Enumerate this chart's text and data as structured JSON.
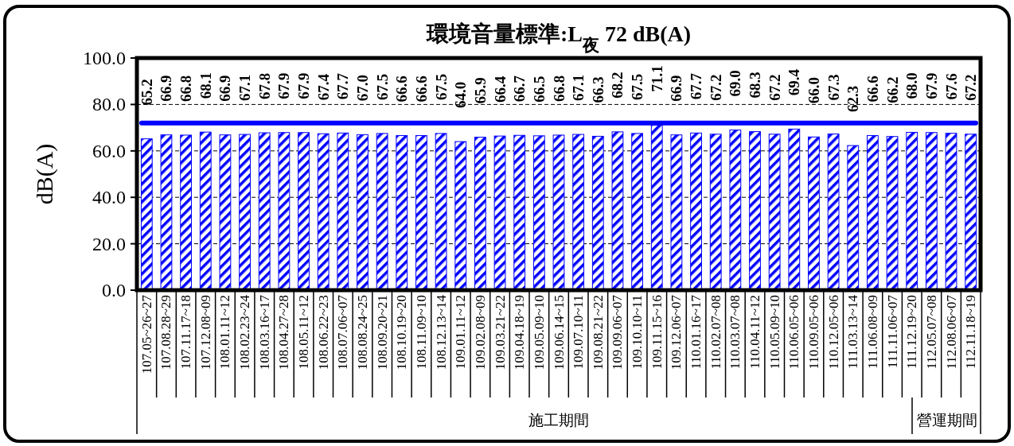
{
  "chart_data": {
    "type": "bar",
    "title": "環境音量標準:L$_{夜}$ 72 dB(A)",
    "ylabel": "dB(A)",
    "categories": [
      "107.05~26~27",
      "107.08.28~29",
      "107.11.17~18",
      "107.12.08~09",
      "108.01.11~12",
      "108.02.23~24",
      "108.03.16~17",
      "108.04.27~28",
      "108.05.11~12",
      "108.06.22~23",
      "108.07.06~07",
      "108.08.24~25",
      "108.09.20~21",
      "108.10.19~20",
      "108.11.09~10",
      "108.12.13~14",
      "109.01.11~12",
      "109.02.08~09",
      "109.03.21~22",
      "109.04.18~19",
      "109.05.09~10",
      "109.06.14~15",
      "109.07.10~11",
      "109.08.21~22",
      "109.09.06~07",
      "109.10.10~11",
      "109.11.15~16",
      "109.12.06~07",
      "110.01.16~17",
      "110.02.07~08",
      "110.03.07~08",
      "110.04.11~12",
      "110.05.09~10",
      "110.06.05~06",
      "110.09.05~06",
      "110.12.05~06",
      "111.03.13~14",
      "111.06.08~09",
      "111.11.06~07",
      "111.12.19~20",
      "112.05.07~08",
      "112.08.06~07",
      "112.11.18~19"
    ],
    "series": [
      {
        "color": "#0000ff",
        "values": [
          65.2,
          66.9,
          66.8,
          68.1,
          66.9,
          67.1,
          67.8,
          67.9,
          67.9,
          67.4,
          67.7,
          67.0,
          67.5,
          66.6,
          66.6,
          67.5,
          64.0,
          65.9,
          66.4,
          66.7,
          66.5,
          66.8,
          67.1,
          66.3,
          68.2,
          67.5,
          71.1,
          66.9,
          67.7,
          67.2,
          69.0,
          68.3,
          67.2,
          69.4,
          66.0,
          67.3,
          62.3,
          66.6,
          66.2,
          68.0,
          67.9,
          67.6,
          67.2
        ]
      }
    ],
    "ylim": [
      0,
      100
    ],
    "yticks": [
      {
        "value": 0,
        "label": "0.0"
      },
      {
        "value": 20,
        "label": "20.0"
      },
      {
        "value": 40,
        "label": "40.0"
      },
      {
        "value": 60,
        "label": "60.0"
      },
      {
        "value": 80,
        "label": "80.0"
      },
      {
        "value": 100,
        "label": "100.0"
      }
    ],
    "value_labels": [
      "65.2",
      "66.9",
      "66.8",
      "68.1",
      "66.9",
      "67.1",
      "67.8",
      "67.9",
      "67.9",
      "67.4",
      "67.7",
      "67.0",
      "67.5",
      "66.6",
      "66.6",
      "67.5",
      "64.0",
      "65.9",
      "66.4",
      "66.7",
      "66.5",
      "66.8",
      "67.1",
      "66.3",
      "68.2",
      "67.5",
      "71.1",
      "66.9",
      "67.7",
      "67.2",
      "69.0",
      "68.3",
      "67.2",
      "69.4",
      "66.0",
      "67.3",
      "62.3",
      "66.6",
      "66.2",
      "68.0",
      "67.9",
      "67.6",
      "67.2"
    ],
    "grid": "y",
    "ref_lines": [
      {
        "axis": "y",
        "value": 72,
        "color": "#0000ff"
      }
    ],
    "annotations": [
      "施工期間",
      "營運期間"
    ]
  }
}
